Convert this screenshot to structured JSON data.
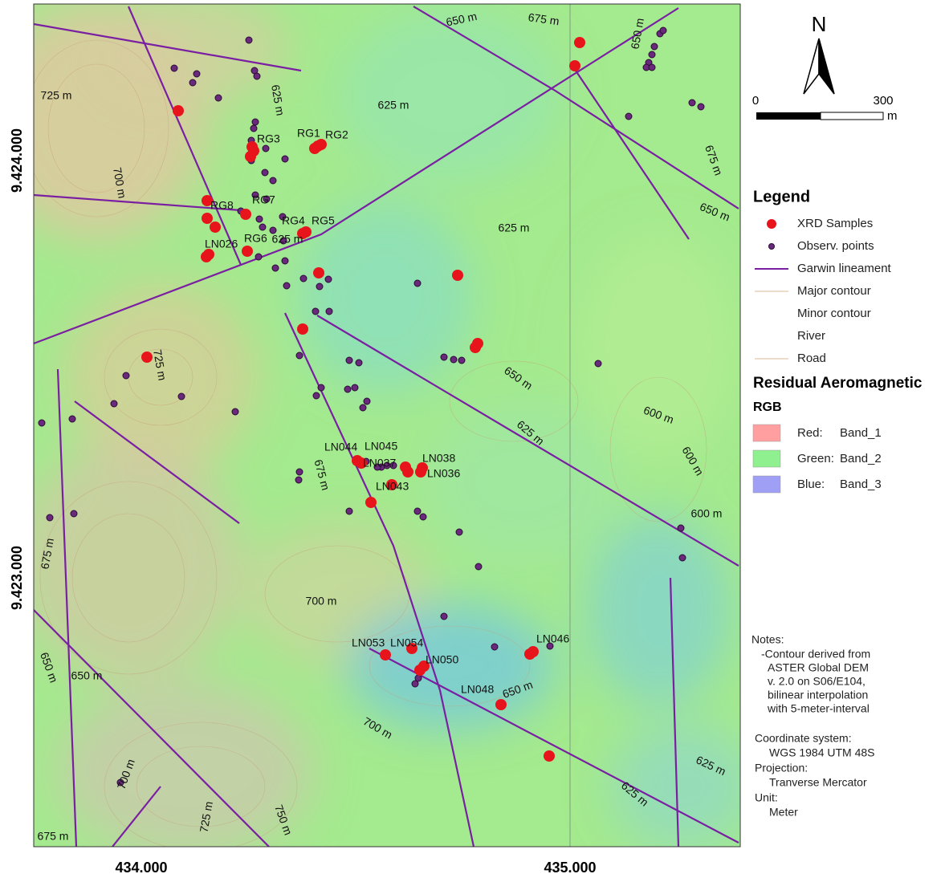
{
  "axes": {
    "y_labels": [
      "9.424.000",
      "9.423.000"
    ],
    "x_labels": [
      "434.000",
      "435.000"
    ]
  },
  "map": {
    "contour_labels": [
      "650 m",
      "675 m",
      "650 m",
      "725 m",
      "625 m",
      "625 m",
      "675 m",
      "700 m",
      "650 m",
      "625 m",
      "625 m",
      "725 m",
      "650 m",
      "600 m",
      "625 m",
      "600 m",
      "675 m",
      "600 m",
      "675 m",
      "700 m",
      "650 m",
      "650 m",
      "650 m",
      "700 m",
      "625 m",
      "700 m",
      "625 m",
      "725 m",
      "750 m",
      "675 m"
    ],
    "sample_labels": [
      "RG1",
      "RG2",
      "RG3",
      "RG8",
      "RG7",
      "RG4",
      "RG5",
      "RG6",
      "LN026",
      "LN044",
      "LN045",
      "LN037",
      "LN038",
      "LN036",
      "LN043",
      "LN053",
      "LN054",
      "LN050",
      "LN048",
      "LN046"
    ]
  },
  "north_arrow": "N",
  "scale_bar": {
    "labels": [
      0,
      300
    ],
    "unit": "m"
  },
  "legend": {
    "title": "Legend",
    "items": [
      "XRD Samples",
      "Observ. points",
      "Garwin lineament",
      "Major contour",
      "Minor contour",
      "River",
      "Road"
    ]
  },
  "raster": {
    "title": "Residual Aeromagnetic",
    "subtitle": "RGB",
    "bands": [
      {
        "channel": "Red:",
        "band": "Band_1"
      },
      {
        "channel": "Green:",
        "band": "Band_2"
      },
      {
        "channel": "Blue:",
        "band": "Band_3"
      }
    ]
  },
  "notes": {
    "title": "Notes:",
    "lines": [
      "-Contour derived from",
      "ASTER Global DEM",
      "v. 2.0 on S06/E104,",
      "bilinear interpolation",
      "with 5-meter-interval"
    ]
  },
  "info": [
    {
      "label": "Coordinate system:",
      "value": "WGS 1984 UTM 48S"
    },
    {
      "label": "Projection:",
      "value": "Tranverse Mercator"
    },
    {
      "label": "Unit:",
      "value": "Meter"
    }
  ]
}
